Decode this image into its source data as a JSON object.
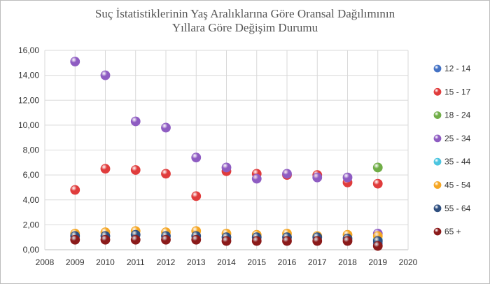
{
  "chart_data": {
    "type": "scatter",
    "title_line1": "Suç İstatistiklerinin Yaş Aralıklarına Göre Oransal Dağılımının",
    "title_line2": "Yıllara Göre Değişim Durumu",
    "xlim": [
      2008,
      2020
    ],
    "ylim": [
      0,
      16
    ],
    "x_ticks": [
      "2008",
      "2009",
      "2010",
      "2011",
      "2012",
      "2013",
      "2014",
      "2015",
      "2016",
      "2017",
      "2018",
      "2019",
      "2020"
    ],
    "y_ticks": [
      "0,00",
      "2,00",
      "4,00",
      "6,00",
      "8,00",
      "10,00",
      "12,00",
      "14,00",
      "16,00"
    ],
    "grid": true,
    "legend_position": "right",
    "series": [
      {
        "name": "12 - 14",
        "color": "#4472c4",
        "points": [
          [
            2019,
            0.5
          ]
        ]
      },
      {
        "name": "15 - 17",
        "color": "#e03c3c",
        "points": [
          [
            2009,
            4.8
          ],
          [
            2010,
            6.5
          ],
          [
            2011,
            6.4
          ],
          [
            2012,
            6.1
          ],
          [
            2013,
            4.3
          ],
          [
            2014,
            6.3
          ],
          [
            2015,
            6.1
          ],
          [
            2016,
            6.0
          ],
          [
            2017,
            6.0
          ],
          [
            2018,
            5.4
          ],
          [
            2019,
            5.3
          ]
        ]
      },
      {
        "name": "18 - 24",
        "color": "#70ad47",
        "points": [
          [
            2019,
            6.6
          ]
        ]
      },
      {
        "name": "25 - 34",
        "color": "#8e5cc2",
        "points": [
          [
            2009,
            15.1
          ],
          [
            2010,
            14.0
          ],
          [
            2011,
            10.3
          ],
          [
            2012,
            9.8
          ],
          [
            2013,
            7.4
          ],
          [
            2014,
            6.6
          ],
          [
            2015,
            5.7
          ],
          [
            2016,
            6.1
          ],
          [
            2017,
            5.8
          ],
          [
            2018,
            5.8
          ],
          [
            2019,
            1.3
          ]
        ]
      },
      {
        "name": "35 - 44",
        "color": "#4bc5e0",
        "points": [
          [
            2019,
            0.8
          ]
        ]
      },
      {
        "name": "45 - 54",
        "color": "#f5a623",
        "points": [
          [
            2009,
            1.3
          ],
          [
            2010,
            1.4
          ],
          [
            2011,
            1.5
          ],
          [
            2012,
            1.4
          ],
          [
            2013,
            1.5
          ],
          [
            2014,
            1.3
          ],
          [
            2015,
            1.2
          ],
          [
            2016,
            1.3
          ],
          [
            2017,
            1.1
          ],
          [
            2018,
            1.2
          ],
          [
            2019,
            1.1
          ]
        ]
      },
      {
        "name": "55 - 64",
        "color": "#2f4f7f",
        "points": [
          [
            2009,
            1.1
          ],
          [
            2010,
            1.1
          ],
          [
            2011,
            1.2
          ],
          [
            2012,
            1.1
          ],
          [
            2013,
            1.1
          ],
          [
            2014,
            1.0
          ],
          [
            2015,
            1.0
          ],
          [
            2016,
            1.0
          ],
          [
            2017,
            1.0
          ],
          [
            2018,
            0.9
          ],
          [
            2019,
            0.7
          ]
        ]
      },
      {
        "name": "65 +",
        "color": "#8b1a1a",
        "points": [
          [
            2009,
            0.8
          ],
          [
            2010,
            0.8
          ],
          [
            2011,
            0.8
          ],
          [
            2012,
            0.8
          ],
          [
            2013,
            0.8
          ],
          [
            2014,
            0.7
          ],
          [
            2015,
            0.7
          ],
          [
            2016,
            0.7
          ],
          [
            2017,
            0.7
          ],
          [
            2018,
            0.7
          ],
          [
            2019,
            0.3
          ]
        ]
      }
    ]
  }
}
